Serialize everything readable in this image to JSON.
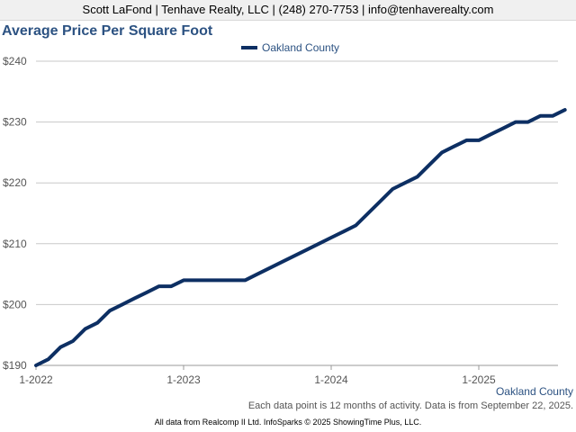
{
  "header": {
    "contact": "Scott LaFond | Tenhave Realty, LLC | (248) 270-7753 | info@tenhaverealty.com"
  },
  "chart_data": {
    "type": "line",
    "title": "Average Price Per Square Foot",
    "xlabel": "",
    "ylabel": "",
    "x_ticks": [
      "1-2022",
      "1-2023",
      "1-2024",
      "1-2025"
    ],
    "y_ticks": [
      "$190",
      "$200",
      "$210",
      "$220",
      "$230",
      "$240"
    ],
    "ylim": [
      190,
      240
    ],
    "xlim": [
      "1-2022",
      "8-2025"
    ],
    "grid": "horizontal",
    "legend_position": "top-center",
    "series": [
      {
        "name": "Oakland County",
        "color": "#0d2f63",
        "x": [
          "1-2022",
          "2-2022",
          "3-2022",
          "4-2022",
          "5-2022",
          "6-2022",
          "7-2022",
          "8-2022",
          "9-2022",
          "10-2022",
          "11-2022",
          "12-2022",
          "1-2023",
          "2-2023",
          "3-2023",
          "4-2023",
          "5-2023",
          "6-2023",
          "7-2023",
          "8-2023",
          "9-2023",
          "10-2023",
          "11-2023",
          "12-2023",
          "1-2024",
          "2-2024",
          "3-2024",
          "4-2024",
          "5-2024",
          "6-2024",
          "7-2024",
          "8-2024",
          "9-2024",
          "10-2024",
          "11-2024",
          "12-2024",
          "1-2025",
          "2-2025",
          "3-2025",
          "4-2025",
          "5-2025",
          "6-2025",
          "7-2025",
          "8-2025"
        ],
        "values": [
          190,
          191,
          193,
          194,
          196,
          197,
          199,
          200,
          201,
          202,
          203,
          203,
          204,
          204,
          204,
          204,
          204,
          204,
          205,
          206,
          207,
          208,
          209,
          210,
          211,
          212,
          213,
          215,
          217,
          219,
          220,
          221,
          223,
          225,
          226,
          227,
          227,
          228,
          229,
          230,
          230,
          231,
          231,
          232
        ]
      }
    ]
  },
  "corner_label": "Oakland County",
  "note": "Each data point is 12 months of activity. Data is from September 22, 2025.",
  "footer": "All data from Realcomp II Ltd. InfoSparks © 2025 ShowingTime Plus, LLC."
}
